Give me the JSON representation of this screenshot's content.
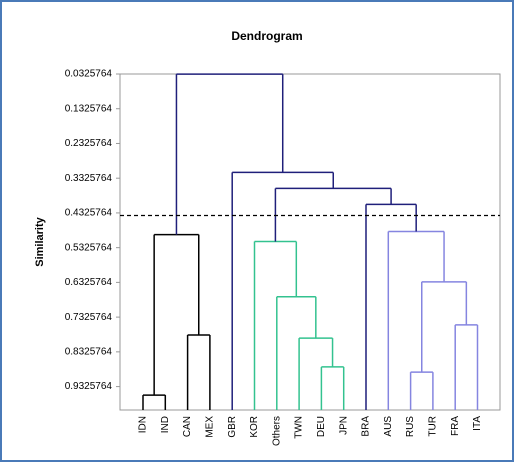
{
  "chart_data": {
    "type": "dendrogram",
    "title": "Dendrogram",
    "y_label": "Similarity",
    "ylim": [
      0.0325764,
      1.0
    ],
    "y_inverted": true,
    "yticks": [
      0.0325764,
      0.1325764,
      0.2325764,
      0.3325764,
      0.4325764,
      0.5325764,
      0.6325764,
      0.7325764,
      0.8325764,
      0.9325764
    ],
    "cutoff": 0.44,
    "tree": {
      "height": 0.033,
      "color": "#1f1f7a",
      "children": [
        {
          "height": 0.495,
          "color": "#000000",
          "children": [
            {
              "height": 0.957,
              "color": "#000000",
              "children": [
                "IDN",
                "IND"
              ]
            },
            {
              "height": 0.784,
              "color": "#000000",
              "children": [
                "CAN",
                "MEX"
              ]
            }
          ]
        },
        {
          "height": 0.316,
          "color": "#1f1f7a",
          "children": [
            "GBR",
            {
              "height": 0.362,
              "color": "#1f1f7a",
              "children": [
                {
                  "height": 0.515,
                  "color": "#33c28f",
                  "children": [
                    "KOR",
                    {
                      "height": 0.674,
                      "color": "#33c28f",
                      "children": [
                        "Others",
                        {
                          "height": 0.793,
                          "color": "#33c28f",
                          "children": [
                            "TWN",
                            {
                              "height": 0.876,
                              "color": "#33c28f",
                              "children": [
                                "DEU",
                                "JPN"
                              ]
                            }
                          ]
                        }
                      ]
                    }
                  ]
                },
                {
                  "height": 0.408,
                  "color": "#1f1f7a",
                  "children": [
                    "BRA",
                    {
                      "height": 0.486,
                      "color": "#8585e0",
                      "children": [
                        "AUS",
                        {
                          "height": 0.631,
                          "color": "#8585e0",
                          "children": [
                            {
                              "height": 0.891,
                              "color": "#8585e0",
                              "children": [
                                "RUS",
                                "TUR"
                              ]
                            },
                            {
                              "height": 0.755,
                              "color": "#8585e0",
                              "children": [
                                "FRA",
                                "ITA"
                              ]
                            }
                          ]
                        }
                      ]
                    }
                  ]
                }
              ]
            }
          ]
        }
      ]
    }
  }
}
